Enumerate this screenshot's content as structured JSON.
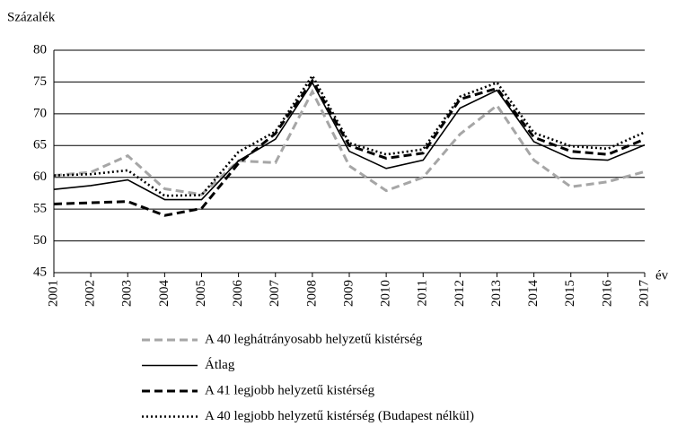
{
  "chart_data": {
    "type": "line",
    "y_label": "Százalék",
    "x_label": "év",
    "categories": [
      "2001",
      "2002",
      "2003",
      "2004",
      "2005",
      "2006",
      "2007",
      "2008",
      "2009",
      "2010",
      "2011",
      "2012",
      "2013",
      "2014",
      "2015",
      "2016",
      "2017"
    ],
    "ylim": [
      45,
      80
    ],
    "yticks": [
      45,
      50,
      55,
      60,
      65,
      70,
      75,
      80
    ],
    "grid": true,
    "legend": "bottom",
    "series": [
      {
        "name": "A 40 leghátrányosabb helyzetű kistérség",
        "color": "#a6a6a6",
        "style": "dashed",
        "values": [
          60.3,
          60.8,
          63.4,
          58.2,
          57.3,
          62.6,
          62.3,
          73.5,
          61.8,
          57.9,
          60.0,
          66.8,
          71.3,
          62.7,
          58.5,
          59.3,
          60.9
        ]
      },
      {
        "name": "Átlag",
        "color": "#000000",
        "style": "solid",
        "values": [
          58.1,
          58.7,
          59.6,
          56.5,
          56.5,
          62.6,
          66.0,
          74.9,
          64.1,
          61.4,
          62.7,
          70.9,
          73.7,
          65.6,
          63.0,
          62.7,
          65.1
        ]
      },
      {
        "name": "A 41 legjobb helyzetű kistérség",
        "color": "#000000",
        "style": "dashed",
        "values": [
          55.8,
          56.0,
          56.2,
          54.0,
          55.1,
          62.2,
          66.9,
          75.2,
          65.0,
          63.0,
          63.8,
          72.3,
          74.0,
          66.3,
          64.1,
          63.6,
          66.0
        ]
      },
      {
        "name": "A 40 legjobb helyzetű kistérség (Budapest nélkül)",
        "color": "#000000",
        "style": "dotted",
        "values": [
          60.3,
          60.5,
          61.1,
          57.1,
          57.2,
          64.0,
          67.2,
          76.0,
          65.4,
          63.6,
          64.4,
          72.7,
          74.9,
          67.0,
          64.9,
          64.5,
          67.1
        ]
      }
    ]
  }
}
